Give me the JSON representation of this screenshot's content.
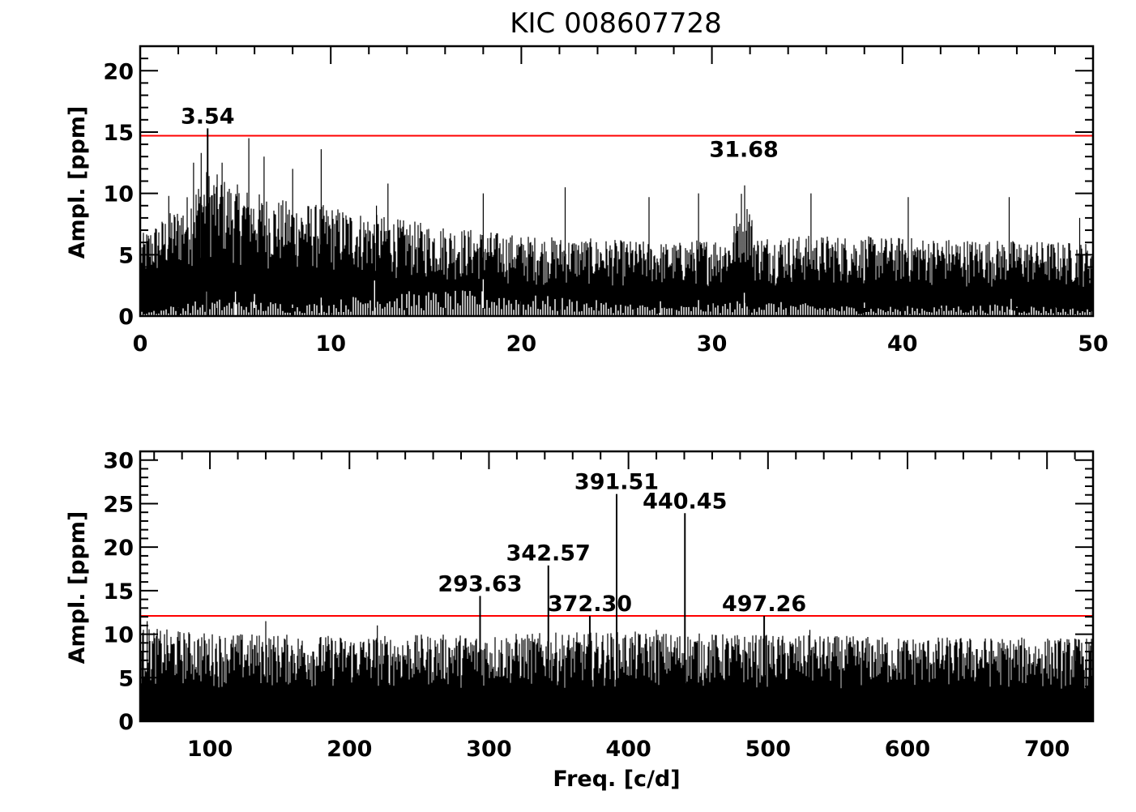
{
  "chart_data": [
    {
      "type": "line",
      "title": "KIC 008607728",
      "xlabel": "",
      "ylabel": "Ampl. [ppm]",
      "xlim": [
        0,
        50
      ],
      "ylim": [
        0,
        22
      ],
      "xticks": [
        "0",
        "10",
        "20",
        "30",
        "40",
        "50"
      ],
      "yticks": [
        "0",
        "5",
        "10",
        "15",
        "20"
      ],
      "threshold": 14.7,
      "threshold_color": "#ff0000",
      "peaks": [
        {
          "label": "3.54",
          "x": 3.54,
          "y": 15.3,
          "mark": true
        },
        {
          "label": "31.68",
          "x": 31.68,
          "y": 12.6,
          "mark": false
        }
      ],
      "envelope": [
        [
          0,
          5.5
        ],
        [
          2,
          7.5
        ],
        [
          3.5,
          10
        ],
        [
          5,
          9
        ],
        [
          7,
          8
        ],
        [
          10,
          7.5
        ],
        [
          14,
          6.5
        ],
        [
          20,
          5.5
        ],
        [
          28,
          5
        ],
        [
          31,
          5.5
        ],
        [
          31.7,
          9.5
        ],
        [
          32.3,
          5.5
        ],
        [
          36,
          5.5
        ],
        [
          42,
          5.3
        ],
        [
          50,
          5
        ]
      ],
      "spikes": [
        [
          1.5,
          9.8
        ],
        [
          2.8,
          12.5
        ],
        [
          3.2,
          13.3
        ],
        [
          4.3,
          12.5
        ],
        [
          5.7,
          14.5
        ],
        [
          6.5,
          13
        ],
        [
          8,
          12
        ],
        [
          9.5,
          13.6
        ],
        [
          12.4,
          9
        ],
        [
          13,
          10.8
        ],
        [
          18,
          10
        ],
        [
          22.3,
          10.5
        ],
        [
          26.7,
          9.7
        ],
        [
          29.3,
          10
        ],
        [
          35.2,
          10
        ],
        [
          40.3,
          9.7
        ],
        [
          45.6,
          9.7
        ],
        [
          49.3,
          8
        ]
      ],
      "residual": [
        [
          0,
          0.5
        ],
        [
          3.5,
          2
        ],
        [
          5,
          2
        ],
        [
          6,
          1.8
        ],
        [
          9.5,
          1.5
        ],
        [
          12.3,
          2.9
        ],
        [
          18,
          3
        ],
        [
          27.3,
          1.2
        ],
        [
          29.3,
          1.3
        ],
        [
          31.7,
          1.9
        ],
        [
          38,
          1.1
        ],
        [
          45.7,
          1.4
        ],
        [
          50,
          0.8
        ]
      ]
    },
    {
      "type": "line",
      "xlabel": "Freq. [c/d]",
      "ylabel": "Ampl. [ppm]",
      "xlim": [
        50,
        733
      ],
      "ylim": [
        0,
        31
      ],
      "xticks": [
        "100",
        "200",
        "300",
        "400",
        "500",
        "600",
        "700"
      ],
      "yticks": [
        "0",
        "5",
        "10",
        "15",
        "20",
        "25",
        "30"
      ],
      "threshold": 12.1,
      "threshold_color": "#ff0000",
      "peaks": [
        {
          "label": "293.63",
          "x": 293.63,
          "y": 14.4,
          "mark": true
        },
        {
          "label": "342.57",
          "x": 342.57,
          "y": 17.9,
          "mark": true
        },
        {
          "label": "372.30",
          "x": 372.3,
          "y": 12.1,
          "mark": true
        },
        {
          "label": "391.51",
          "x": 391.51,
          "y": 26.1,
          "mark": true
        },
        {
          "label": "440.45",
          "x": 440.45,
          "y": 23.9,
          "mark": true
        },
        {
          "label": "497.26",
          "x": 497.26,
          "y": 12.1,
          "mark": true
        }
      ],
      "envelope": [
        [
          50,
          9
        ],
        [
          100,
          8.5
        ],
        [
          200,
          8.2
        ],
        [
          300,
          8.4
        ],
        [
          400,
          8.6
        ],
        [
          500,
          8.3
        ],
        [
          600,
          8.1
        ],
        [
          733,
          8
        ]
      ],
      "spikes": [
        [
          55,
          11.5
        ],
        [
          140,
          11.5
        ],
        [
          220,
          11
        ],
        [
          420,
          10.5
        ],
        [
          530,
          10.5
        ],
        [
          720,
          9.5
        ]
      ],
      "residual": []
    }
  ]
}
